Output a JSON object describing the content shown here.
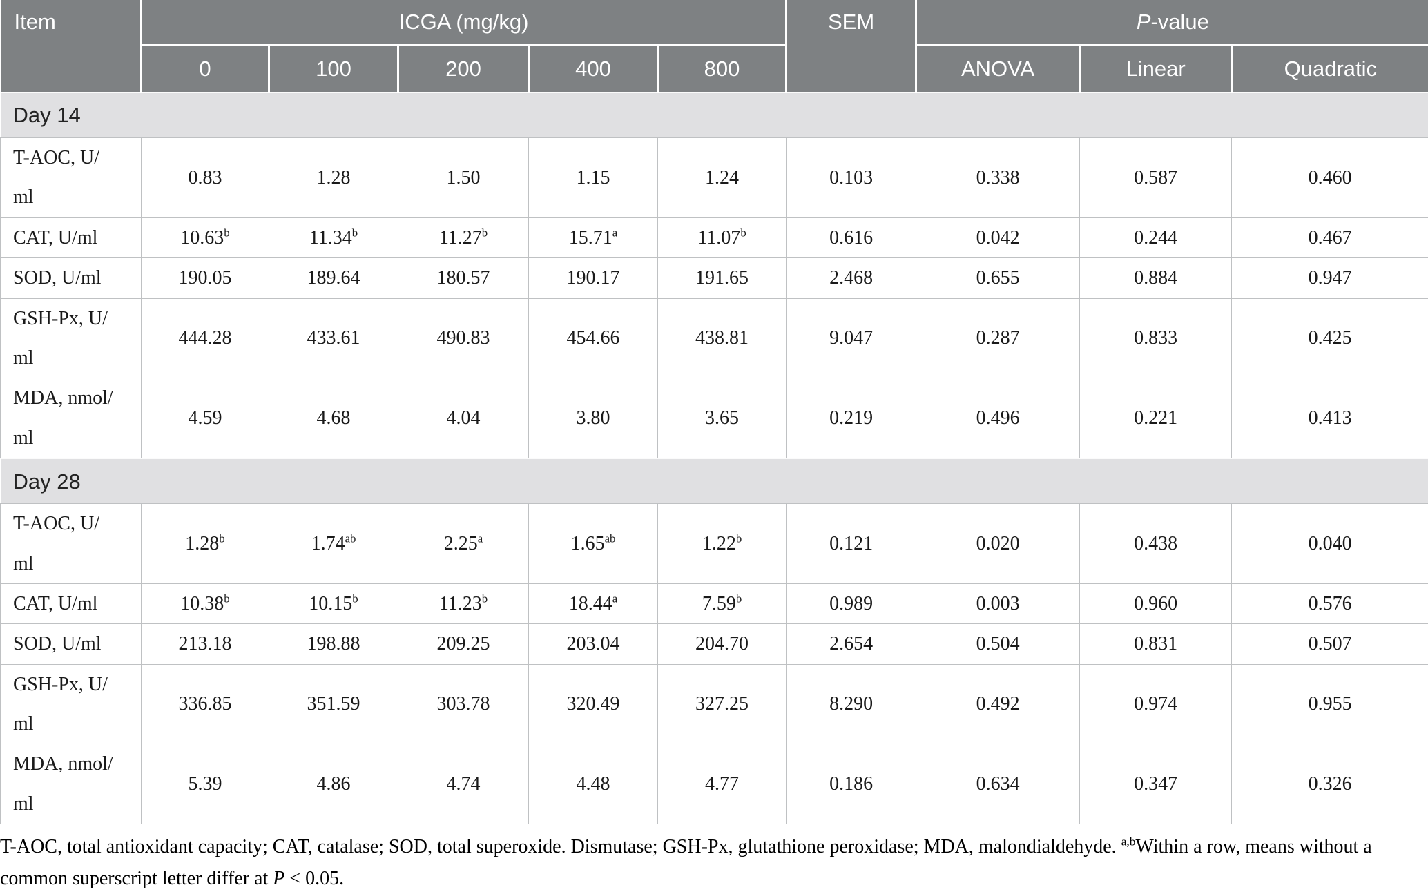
{
  "colors": {
    "header_bg": "#7e8183",
    "band_bg": "#e0e0e2",
    "grid": "#bfc1c3",
    "header_text": "#ffffff"
  },
  "table": {
    "header": {
      "item_label": "Item",
      "icga_label": "ICGA (mg/kg)",
      "doses": [
        "0",
        "100",
        "200",
        "400",
        "800"
      ],
      "sem_label": "SEM",
      "pvalue_p": "P",
      "pvalue_rest": "-value",
      "pcols": [
        "ANOVA",
        "Linear",
        "Quadratic"
      ]
    },
    "sections": [
      {
        "title": "Day 14",
        "rows": [
          {
            "item": "T-AOC, U/\nml",
            "values": [
              {
                "v": "0.83",
                "s": ""
              },
              {
                "v": "1.28",
                "s": ""
              },
              {
                "v": "1.50",
                "s": ""
              },
              {
                "v": "1.15",
                "s": ""
              },
              {
                "v": "1.24",
                "s": ""
              }
            ],
            "sem": "0.103",
            "pvalues": [
              "0.338",
              "0.587",
              "0.460"
            ]
          },
          {
            "item": "CAT, U/ml",
            "values": [
              {
                "v": "10.63",
                "s": "b"
              },
              {
                "v": "11.34",
                "s": "b"
              },
              {
                "v": "11.27",
                "s": "b"
              },
              {
                "v": "15.71",
                "s": "a"
              },
              {
                "v": "11.07",
                "s": "b"
              }
            ],
            "sem": "0.616",
            "pvalues": [
              "0.042",
              "0.244",
              "0.467"
            ]
          },
          {
            "item": "SOD, U/ml",
            "values": [
              {
                "v": "190.05",
                "s": ""
              },
              {
                "v": "189.64",
                "s": ""
              },
              {
                "v": "180.57",
                "s": ""
              },
              {
                "v": "190.17",
                "s": ""
              },
              {
                "v": "191.65",
                "s": ""
              }
            ],
            "sem": "2.468",
            "pvalues": [
              "0.655",
              "0.884",
              "0.947"
            ]
          },
          {
            "item": "GSH-Px, U/\nml",
            "values": [
              {
                "v": "444.28",
                "s": ""
              },
              {
                "v": "433.61",
                "s": ""
              },
              {
                "v": "490.83",
                "s": ""
              },
              {
                "v": "454.66",
                "s": ""
              },
              {
                "v": "438.81",
                "s": ""
              }
            ],
            "sem": "9.047",
            "pvalues": [
              "0.287",
              "0.833",
              "0.425"
            ]
          },
          {
            "item": "MDA, nmol/\nml",
            "values": [
              {
                "v": "4.59",
                "s": ""
              },
              {
                "v": "4.68",
                "s": ""
              },
              {
                "v": "4.04",
                "s": ""
              },
              {
                "v": "3.80",
                "s": ""
              },
              {
                "v": "3.65",
                "s": ""
              }
            ],
            "sem": "0.219",
            "pvalues": [
              "0.496",
              "0.221",
              "0.413"
            ]
          }
        ]
      },
      {
        "title": "Day 28",
        "rows": [
          {
            "item": "T-AOC, U/\nml",
            "values": [
              {
                "v": "1.28",
                "s": "b"
              },
              {
                "v": "1.74",
                "s": "ab"
              },
              {
                "v": "2.25",
                "s": "a"
              },
              {
                "v": "1.65",
                "s": "ab"
              },
              {
                "v": "1.22",
                "s": "b"
              }
            ],
            "sem": "0.121",
            "pvalues": [
              "0.020",
              "0.438",
              "0.040"
            ]
          },
          {
            "item": "CAT, U/ml",
            "values": [
              {
                "v": "10.38",
                "s": "b"
              },
              {
                "v": "10.15",
                "s": "b"
              },
              {
                "v": "11.23",
                "s": "b"
              },
              {
                "v": "18.44",
                "s": "a"
              },
              {
                "v": "7.59",
                "s": "b"
              }
            ],
            "sem": "0.989",
            "pvalues": [
              "0.003",
              "0.960",
              "0.576"
            ]
          },
          {
            "item": "SOD, U/ml",
            "values": [
              {
                "v": "213.18",
                "s": ""
              },
              {
                "v": "198.88",
                "s": ""
              },
              {
                "v": "209.25",
                "s": ""
              },
              {
                "v": "203.04",
                "s": ""
              },
              {
                "v": "204.70",
                "s": ""
              }
            ],
            "sem": "2.654",
            "pvalues": [
              "0.504",
              "0.831",
              "0.507"
            ]
          },
          {
            "item": "GSH-Px, U/\nml",
            "values": [
              {
                "v": "336.85",
                "s": ""
              },
              {
                "v": "351.59",
                "s": ""
              },
              {
                "v": "303.78",
                "s": ""
              },
              {
                "v": "320.49",
                "s": ""
              },
              {
                "v": "327.25",
                "s": ""
              }
            ],
            "sem": "8.290",
            "pvalues": [
              "0.492",
              "0.974",
              "0.955"
            ]
          },
          {
            "item": "MDA, nmol/\nml",
            "values": [
              {
                "v": "5.39",
                "s": ""
              },
              {
                "v": "4.86",
                "s": ""
              },
              {
                "v": "4.74",
                "s": ""
              },
              {
                "v": "4.48",
                "s": ""
              },
              {
                "v": "4.77",
                "s": ""
              }
            ],
            "sem": "0.186",
            "pvalues": [
              "0.634",
              "0.347",
              "0.326"
            ]
          }
        ]
      }
    ],
    "footnote": {
      "part1": "T-AOC, total antioxidant capacity; CAT, catalase; SOD, total superoxide. Dismutase; GSH-Px, glutathione peroxidase; MDA, malondialdehyde. ",
      "sup": "a,b",
      "part2": "Within a row, means without a common superscript letter differ at ",
      "p_italic": "P",
      "part3": " < 0.05."
    }
  }
}
